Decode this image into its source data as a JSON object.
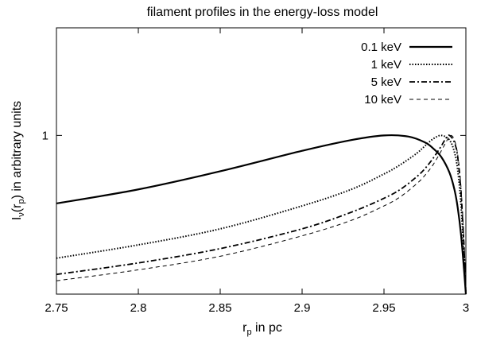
{
  "chart_data": {
    "type": "line",
    "title": "filament profiles in the energy-loss model",
    "xlabel": "r_p in pc",
    "ylabel": "I_ν(r_p) in arbitrary units",
    "xlabel_parts": {
      "main": "r",
      "sub": "p",
      "rest": " in pc"
    },
    "ylabel_parts": {
      "i": "I",
      "nu": "ν",
      "open": "(r",
      "sub": "p",
      "close": ") in arbitrary units"
    },
    "xlim": [
      2.75,
      3.0
    ],
    "ylim": [
      0.5,
      1.6
    ],
    "yscale": "log",
    "x_ticks": [
      "2.75",
      "2.8",
      "2.85",
      "2.9",
      "2.95",
      "3"
    ],
    "y_ticks": [
      "1"
    ],
    "legend_position": "top-right",
    "series": [
      {
        "name": "0.1 keV",
        "style": "solid",
        "x": [
          2.75,
          2.8,
          2.85,
          2.9,
          2.93,
          2.95,
          2.965,
          2.975,
          2.98,
          2.985,
          2.99,
          2.993,
          2.995,
          2.997,
          2.999,
          3.0
        ],
        "y": [
          0.743,
          0.79,
          0.855,
          0.935,
          0.98,
          1.0,
          0.995,
          0.97,
          0.945,
          0.91,
          0.85,
          0.79,
          0.73,
          0.65,
          0.55,
          0.48
        ]
      },
      {
        "name": "1 keV",
        "style": "dotted",
        "x": [
          2.75,
          2.8,
          2.85,
          2.9,
          2.93,
          2.95,
          2.96,
          2.97,
          2.975,
          2.98,
          2.985,
          2.99,
          2.993,
          2.995,
          2.997,
          2.999,
          3.0
        ],
        "y": [
          0.585,
          0.62,
          0.665,
          0.735,
          0.79,
          0.845,
          0.88,
          0.925,
          0.955,
          0.985,
          1.0,
          0.98,
          0.93,
          0.86,
          0.74,
          0.58,
          0.48
        ]
      },
      {
        "name": "5 keV",
        "style": "dashdot",
        "x": [
          2.75,
          2.8,
          2.85,
          2.9,
          2.93,
          2.95,
          2.96,
          2.97,
          2.975,
          2.98,
          2.985,
          2.988,
          2.99,
          2.993,
          2.995,
          2.997,
          2.999,
          3.0
        ],
        "y": [
          0.545,
          0.573,
          0.61,
          0.665,
          0.715,
          0.76,
          0.79,
          0.835,
          0.865,
          0.905,
          0.955,
          0.99,
          1.0,
          0.97,
          0.91,
          0.78,
          0.6,
          0.48
        ]
      },
      {
        "name": "10 keV",
        "style": "dashed",
        "x": [
          2.75,
          2.8,
          2.85,
          2.9,
          2.93,
          2.95,
          2.96,
          2.97,
          2.975,
          2.98,
          2.985,
          2.989,
          2.991,
          2.993,
          2.995,
          2.997,
          2.999,
          3.0
        ],
        "y": [
          0.53,
          0.556,
          0.59,
          0.645,
          0.69,
          0.735,
          0.765,
          0.81,
          0.84,
          0.88,
          0.935,
          0.985,
          1.0,
          0.98,
          0.92,
          0.8,
          0.62,
          0.48
        ]
      }
    ]
  }
}
